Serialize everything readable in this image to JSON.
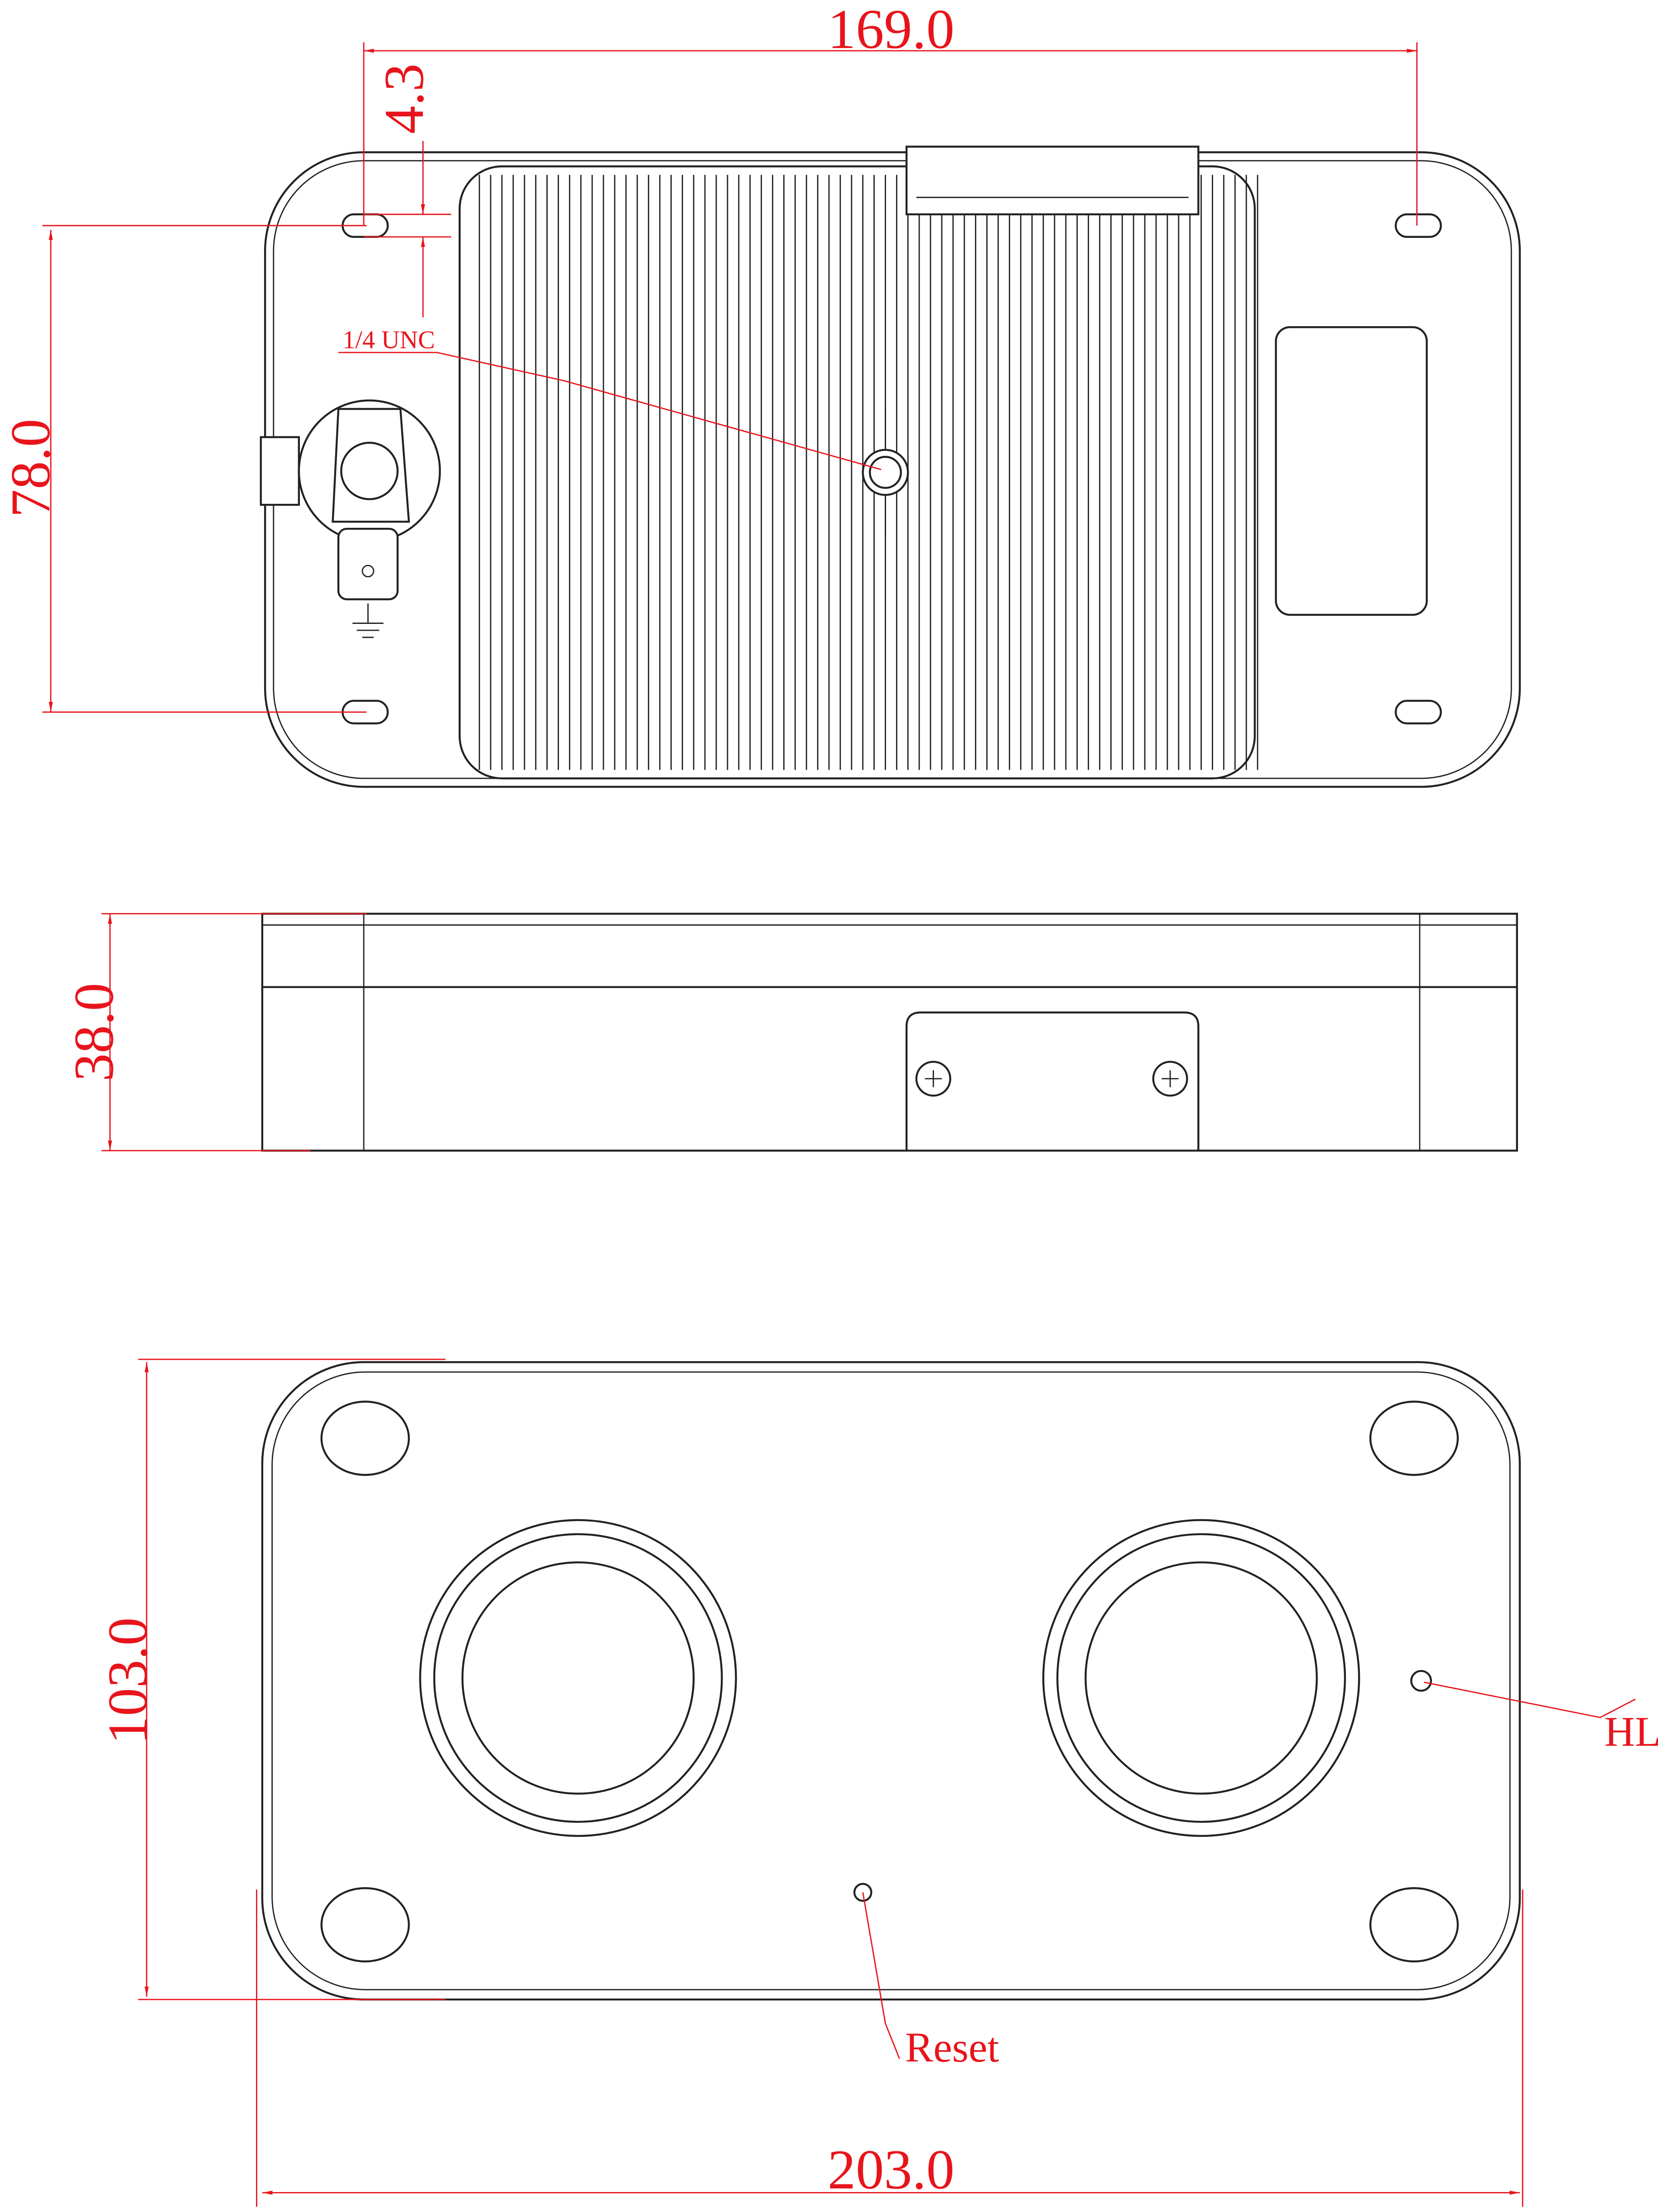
{
  "top_view": {
    "width_dim": "169.0",
    "offset_dim": "4.3",
    "height_dim": "78.0",
    "thread_note": "1/4 UNC"
  },
  "side_view": {
    "height_dim": "38.0"
  },
  "bottom_view": {
    "height_dim": "103.0",
    "width_dim": "203.0",
    "hl_label": "HL",
    "reset_label": "Reset"
  }
}
